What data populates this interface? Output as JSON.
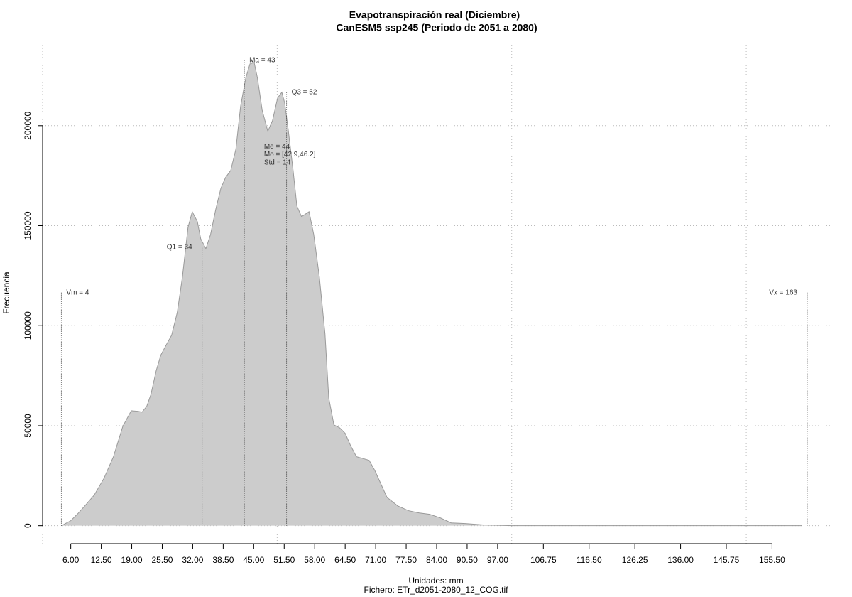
{
  "chart_data": {
    "type": "area",
    "title": "Evapotranspiración real (Diciembre)",
    "subtitle": "CanESM5 ssp245 (Periodo de 2051 a 2080)",
    "x_label": "Unidades: mm",
    "caption": "Fichero: ETr_d2051-2080_12_COG.tif",
    "y_label": "Frecuencia",
    "color": "#cccccc",
    "line_color": "#999999",
    "xlim": [
      0,
      168
    ],
    "ylim": [
      -9000,
      241500
    ],
    "xticks": [
      {
        "value": 6,
        "label": "6.00"
      },
      {
        "value": 12.5,
        "label": "12.50"
      },
      {
        "value": 19,
        "label": "19.00"
      },
      {
        "value": 25.5,
        "label": "25.50"
      },
      {
        "value": 32,
        "label": "32.00"
      },
      {
        "value": 38.5,
        "label": "38.50"
      },
      {
        "value": 45,
        "label": "45.00"
      },
      {
        "value": 51.5,
        "label": "51.50"
      },
      {
        "value": 58,
        "label": "58.00"
      },
      {
        "value": 64.5,
        "label": "64.50"
      },
      {
        "value": 71,
        "label": "71.00"
      },
      {
        "value": 77.5,
        "label": "77.50"
      },
      {
        "value": 84,
        "label": "84.00"
      },
      {
        "value": 90.5,
        "label": "90.50"
      },
      {
        "value": 97,
        "label": "97.00"
      },
      {
        "value": 106.75,
        "label": "106.75"
      },
      {
        "value": 116.5,
        "label": "116.50"
      },
      {
        "value": 126.25,
        "label": "126.25"
      },
      {
        "value": 136,
        "label": "136.00"
      },
      {
        "value": 145.75,
        "label": "145.75"
      },
      {
        "value": 155.5,
        "label": "155.50"
      }
    ],
    "yticks": [
      0,
      50000,
      100000,
      150000,
      200000
    ],
    "xgrid": [
      0,
      50,
      100,
      150
    ],
    "grid": true,
    "x": [
      4.0,
      6.0,
      7.5,
      9.0,
      11.0,
      13.1,
      15.1,
      17.1,
      18.9,
      20.4,
      21.2,
      22.2,
      23.1,
      24.2,
      25.2,
      26.4,
      27.5,
      28.7,
      29.8,
      31.0,
      31.9,
      33.0,
      33.7,
      34.8,
      35.8,
      36.9,
      38.0,
      39.0,
      40.1,
      41.2,
      42.2,
      43.3,
      44.2,
      45.1,
      45.8,
      46.8,
      48.0,
      49.0,
      50.1,
      51.0,
      51.6,
      52.4,
      53.4,
      54.2,
      55.2,
      56.8,
      57.8,
      59.0,
      60.2,
      61.0,
      62.1,
      63.3,
      64.5,
      65.7,
      66.9,
      68.1,
      69.6,
      70.8,
      71.9,
      73.4,
      75.7,
      78.0,
      80.2,
      82.5,
      84.8,
      87.1,
      90.1,
      93.9,
      100.0,
      112.1,
      161.8
    ],
    "values": [
      0,
      2500,
      6000,
      9900,
      15300,
      23800,
      34500,
      49700,
      57500,
      57200,
      56800,
      59700,
      65700,
      77400,
      85300,
      90600,
      95200,
      106600,
      124300,
      149200,
      157000,
      152000,
      143500,
      138500,
      145600,
      158100,
      168700,
      174100,
      177600,
      188300,
      209600,
      223800,
      230900,
      231600,
      223800,
      207800,
      197200,
      202500,
      213900,
      216700,
      211400,
      197200,
      177600,
      159900,
      154500,
      157000,
      145600,
      124300,
      95900,
      63900,
      50400,
      49000,
      46200,
      39800,
      34500,
      33700,
      32700,
      27700,
      22000,
      14200,
      9900,
      7500,
      6400,
      5700,
      3900,
      1400,
      1100,
      400,
      0,
      0,
      0
    ],
    "annotations": [
      {
        "label": "Vm = 4",
        "x": 4,
        "y": 116500,
        "pos": "right"
      },
      {
        "label": "Q1 = 34",
        "x": 34,
        "y": 139300,
        "pos": "left"
      },
      {
        "label": "Ma = 43",
        "x": 43,
        "y": 232700,
        "pos": "right"
      },
      {
        "label": "Q3 = 52",
        "x": 52,
        "y": 216700,
        "pos": "right"
      },
      {
        "label": "Vx = 163",
        "x": 163,
        "y": 116500,
        "pos": "left"
      }
    ],
    "stats": [
      {
        "label": "Me = 44",
        "x": 47.2,
        "y": 189500
      },
      {
        "label": "Mo = [42.9,46.2]",
        "x": 47.2,
        "y": 185500
      },
      {
        "label": "Std = 14",
        "x": 47.2,
        "y": 181500
      }
    ]
  }
}
